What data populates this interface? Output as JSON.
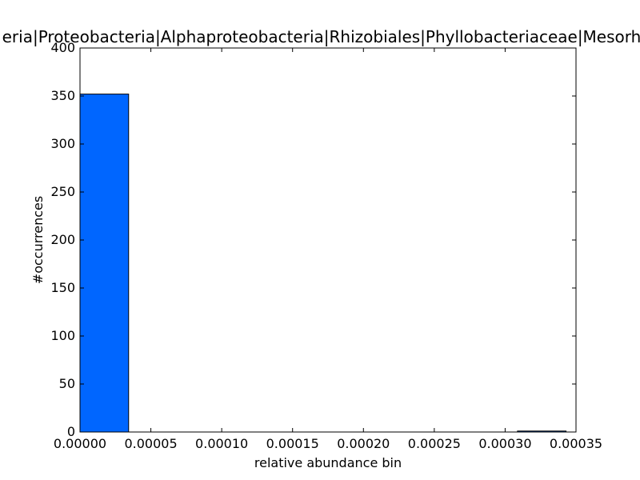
{
  "chart_data": {
    "type": "bar",
    "title": "eria|Proteobacteria|Alphaproteobacteria|Rhizobiales|Phyllobacteriaceae|Mesorhiz",
    "xlabel": "relative abundance bin",
    "ylabel": "#occurrences",
    "xlim": [
      0,
      0.00035
    ],
    "ylim": [
      0,
      400
    ],
    "xticks": [
      "0.00000",
      "0.00005",
      "0.00010",
      "0.00015",
      "0.00020",
      "0.00025",
      "0.00030",
      "0.00035"
    ],
    "yticks": [
      "0",
      "50",
      "100",
      "150",
      "200",
      "250",
      "300",
      "350",
      "400"
    ],
    "grid": false,
    "legend": "none",
    "bar_color": "#0066ff",
    "bins": [
      {
        "x0": 0.0,
        "x1": 3.43e-05,
        "count": 352
      },
      {
        "x0": 3.43e-05,
        "x1": 6.86e-05,
        "count": 0
      },
      {
        "x0": 6.86e-05,
        "x1": 0.0001029,
        "count": 0
      },
      {
        "x0": 0.0001029,
        "x1": 0.0001372,
        "count": 0
      },
      {
        "x0": 0.0001372,
        "x1": 0.0001715,
        "count": 0
      },
      {
        "x0": 0.0001715,
        "x1": 0.0002058,
        "count": 0
      },
      {
        "x0": 0.0002058,
        "x1": 0.0002401,
        "count": 0
      },
      {
        "x0": 0.0002401,
        "x1": 0.0002744,
        "count": 0
      },
      {
        "x0": 0.0002744,
        "x1": 0.0003087,
        "count": 0
      },
      {
        "x0": 0.0003087,
        "x1": 0.000343,
        "count": 1
      }
    ]
  }
}
